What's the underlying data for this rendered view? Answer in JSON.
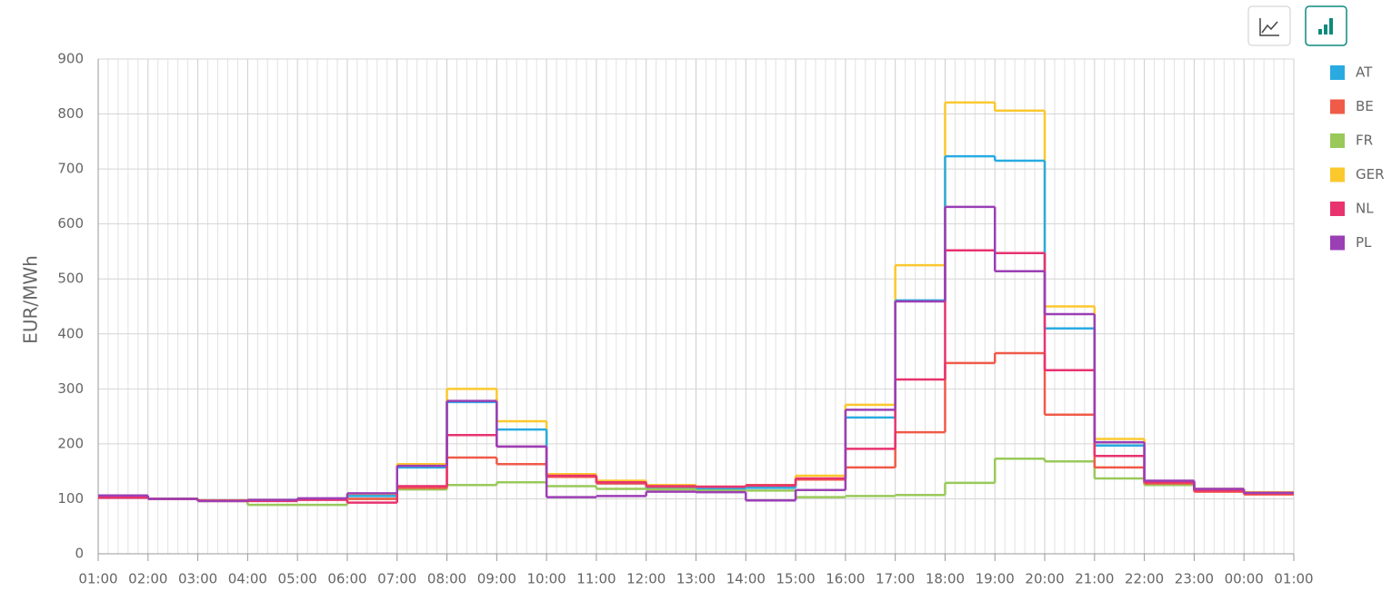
{
  "chart_data": {
    "type": "step",
    "y_label": "EUR/MWh",
    "xticks": [
      "01:00",
      "02:00",
      "03:00",
      "04:00",
      "05:00",
      "06:00",
      "07:00",
      "08:00",
      "09:00",
      "10:00",
      "11:00",
      "12:00",
      "13:00",
      "14:00",
      "15:00",
      "16:00",
      "17:00",
      "18:00",
      "19:00",
      "20:00",
      "21:00",
      "22:00",
      "23:00",
      "00:00",
      "01:00"
    ],
    "ylim": [
      0,
      900
    ],
    "yticks": [
      0,
      100,
      200,
      300,
      400,
      500,
      600,
      700,
      800,
      900
    ],
    "grid": true,
    "series": [
      {
        "name": "AT",
        "color": "#29abe2",
        "values": [
          105,
          100,
          97,
          97,
          100,
          105,
          157,
          276,
          226,
          140,
          128,
          120,
          118,
          120,
          135,
          248,
          461,
          723,
          715,
          410,
          197,
          130,
          117,
          110
        ]
      },
      {
        "name": "BE",
        "color": "#f05a48",
        "values": [
          102,
          100,
          97,
          97,
          99,
          100,
          120,
          175,
          163,
          140,
          128,
          122,
          122,
          125,
          135,
          157,
          221,
          347,
          365,
          253,
          157,
          128,
          113,
          108
        ]
      },
      {
        "name": "FR",
        "color": "#99c95a",
        "values": [
          103,
          100,
          96,
          89,
          89,
          100,
          117,
          125,
          130,
          123,
          118,
          117,
          115,
          115,
          103,
          105,
          107,
          129,
          173,
          168,
          137,
          125,
          115,
          110
        ]
      },
      {
        "name": "GER",
        "color": "#fbc82d",
        "values": [
          105,
          100,
          97,
          97,
          100,
          108,
          163,
          300,
          241,
          145,
          133,
          125,
          122,
          123,
          142,
          271,
          525,
          821,
          806,
          450,
          209,
          132,
          118,
          112
        ]
      },
      {
        "name": "NL",
        "color": "#e8336f",
        "values": [
          102,
          100,
          96,
          96,
          98,
          93,
          123,
          216,
          195,
          142,
          130,
          123,
          122,
          124,
          137,
          191,
          317,
          552,
          547,
          334,
          178,
          130,
          115,
          110
        ]
      },
      {
        "name": "PL",
        "color": "#9b3fb5",
        "values": [
          106,
          100,
          96,
          98,
          101,
          110,
          160,
          278,
          195,
          103,
          105,
          113,
          112,
          97,
          116,
          262,
          459,
          631,
          514,
          436,
          203,
          133,
          118,
          111
        ]
      }
    ]
  }
}
